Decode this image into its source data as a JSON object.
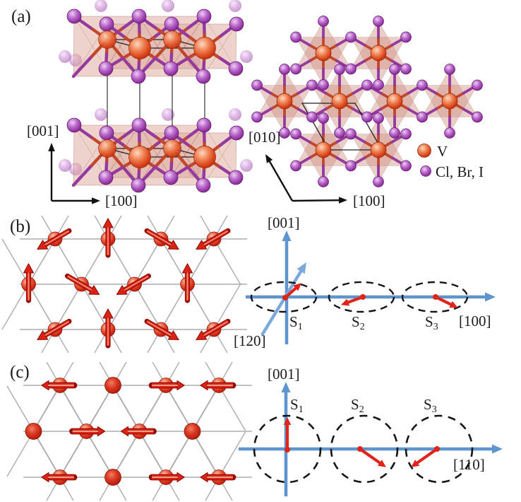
{
  "colors": {
    "axis_blue": "#5E95CE",
    "axis_blue_light": "#7AA9DC",
    "spin_red": "#E0241A",
    "label_red": "#E02B1E",
    "vanadium": "#E2492F",
    "halide": "#A24CB4"
  },
  "panel_a": {
    "label": "(a)",
    "side_view": {
      "vertical_axis": "[001]",
      "horizontal_axis": "[100]"
    },
    "top_view": {
      "vertical_axis": "[010]",
      "horizontal_axis": "[100]"
    },
    "legend": [
      {
        "symbol": "V"
      },
      {
        "symbol": "Cl, Br, I"
      }
    ]
  },
  "panel_b": {
    "label": "(b)",
    "lattice": {
      "rows": [
        {
          "arrows_deg": [
            210,
            90,
            330,
            210
          ]
        },
        {
          "arrows_deg": [
            90,
            330,
            210,
            90
          ]
        },
        {
          "arrows_deg": [
            210,
            90,
            330,
            210
          ]
        }
      ]
    },
    "diagram": {
      "vertical_axis": "[001]",
      "horizontal_axis": "[100]",
      "diagonal_axis": "[120]",
      "spins": [
        {
          "label": "S",
          "sub": "1",
          "angle_deg": 42
        },
        {
          "label": "S",
          "sub": "2",
          "angle_deg": 200
        },
        {
          "label": "S",
          "sub": "3",
          "angle_deg": -26
        }
      ]
    }
  },
  "panel_c": {
    "label": "(c)",
    "lattice": {
      "rows": [
        {
          "spins": [
            "left",
            "dot",
            "right",
            "left"
          ]
        },
        {
          "spins": [
            "dot",
            "right",
            "left",
            "dot"
          ]
        },
        {
          "spins": [
            "left",
            "dot",
            "right",
            "left"
          ]
        }
      ]
    },
    "diagram": {
      "vertical_axis": "[001]",
      "horizontal_axis": "[110]",
      "spins": [
        {
          "label": "S",
          "sub": "1",
          "angle_deg": 90
        },
        {
          "label": "S",
          "sub": "2",
          "angle_deg": -35
        },
        {
          "label": "S",
          "sub": "3",
          "angle_deg": 215
        }
      ]
    }
  }
}
